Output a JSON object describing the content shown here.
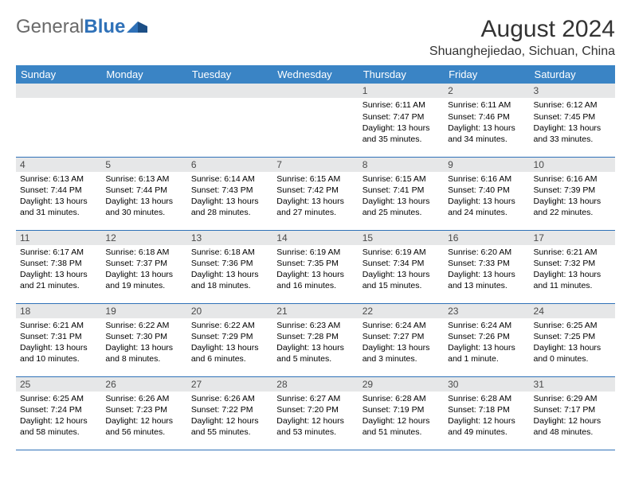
{
  "brand": {
    "part1": "General",
    "part2": "Blue"
  },
  "title": "August 2024",
  "location": "Shuanghejiedao, Sichuan, China",
  "colors": {
    "header_bg": "#3a84c5",
    "header_text": "#ffffff",
    "daynum_bg": "#e6e7e8",
    "border": "#2f71b8",
    "brand_blue": "#2f71b8",
    "brand_gray": "#6a6a6a",
    "background": "#ffffff"
  },
  "weekdays": [
    "Sunday",
    "Monday",
    "Tuesday",
    "Wednesday",
    "Thursday",
    "Friday",
    "Saturday"
  ],
  "weeks": [
    [
      null,
      null,
      null,
      null,
      {
        "d": "1",
        "sr": "6:11 AM",
        "ss": "7:47 PM",
        "dl": "13 hours and 35 minutes."
      },
      {
        "d": "2",
        "sr": "6:11 AM",
        "ss": "7:46 PM",
        "dl": "13 hours and 34 minutes."
      },
      {
        "d": "3",
        "sr": "6:12 AM",
        "ss": "7:45 PM",
        "dl": "13 hours and 33 minutes."
      }
    ],
    [
      {
        "d": "4",
        "sr": "6:13 AM",
        "ss": "7:44 PM",
        "dl": "13 hours and 31 minutes."
      },
      {
        "d": "5",
        "sr": "6:13 AM",
        "ss": "7:44 PM",
        "dl": "13 hours and 30 minutes."
      },
      {
        "d": "6",
        "sr": "6:14 AM",
        "ss": "7:43 PM",
        "dl": "13 hours and 28 minutes."
      },
      {
        "d": "7",
        "sr": "6:15 AM",
        "ss": "7:42 PM",
        "dl": "13 hours and 27 minutes."
      },
      {
        "d": "8",
        "sr": "6:15 AM",
        "ss": "7:41 PM",
        "dl": "13 hours and 25 minutes."
      },
      {
        "d": "9",
        "sr": "6:16 AM",
        "ss": "7:40 PM",
        "dl": "13 hours and 24 minutes."
      },
      {
        "d": "10",
        "sr": "6:16 AM",
        "ss": "7:39 PM",
        "dl": "13 hours and 22 minutes."
      }
    ],
    [
      {
        "d": "11",
        "sr": "6:17 AM",
        "ss": "7:38 PM",
        "dl": "13 hours and 21 minutes."
      },
      {
        "d": "12",
        "sr": "6:18 AM",
        "ss": "7:37 PM",
        "dl": "13 hours and 19 minutes."
      },
      {
        "d": "13",
        "sr": "6:18 AM",
        "ss": "7:36 PM",
        "dl": "13 hours and 18 minutes."
      },
      {
        "d": "14",
        "sr": "6:19 AM",
        "ss": "7:35 PM",
        "dl": "13 hours and 16 minutes."
      },
      {
        "d": "15",
        "sr": "6:19 AM",
        "ss": "7:34 PM",
        "dl": "13 hours and 15 minutes."
      },
      {
        "d": "16",
        "sr": "6:20 AM",
        "ss": "7:33 PM",
        "dl": "13 hours and 13 minutes."
      },
      {
        "d": "17",
        "sr": "6:21 AM",
        "ss": "7:32 PM",
        "dl": "13 hours and 11 minutes."
      }
    ],
    [
      {
        "d": "18",
        "sr": "6:21 AM",
        "ss": "7:31 PM",
        "dl": "13 hours and 10 minutes."
      },
      {
        "d": "19",
        "sr": "6:22 AM",
        "ss": "7:30 PM",
        "dl": "13 hours and 8 minutes."
      },
      {
        "d": "20",
        "sr": "6:22 AM",
        "ss": "7:29 PM",
        "dl": "13 hours and 6 minutes."
      },
      {
        "d": "21",
        "sr": "6:23 AM",
        "ss": "7:28 PM",
        "dl": "13 hours and 5 minutes."
      },
      {
        "d": "22",
        "sr": "6:24 AM",
        "ss": "7:27 PM",
        "dl": "13 hours and 3 minutes."
      },
      {
        "d": "23",
        "sr": "6:24 AM",
        "ss": "7:26 PM",
        "dl": "13 hours and 1 minute."
      },
      {
        "d": "24",
        "sr": "6:25 AM",
        "ss": "7:25 PM",
        "dl": "13 hours and 0 minutes."
      }
    ],
    [
      {
        "d": "25",
        "sr": "6:25 AM",
        "ss": "7:24 PM",
        "dl": "12 hours and 58 minutes."
      },
      {
        "d": "26",
        "sr": "6:26 AM",
        "ss": "7:23 PM",
        "dl": "12 hours and 56 minutes."
      },
      {
        "d": "27",
        "sr": "6:26 AM",
        "ss": "7:22 PM",
        "dl": "12 hours and 55 minutes."
      },
      {
        "d": "28",
        "sr": "6:27 AM",
        "ss": "7:20 PM",
        "dl": "12 hours and 53 minutes."
      },
      {
        "d": "29",
        "sr": "6:28 AM",
        "ss": "7:19 PM",
        "dl": "12 hours and 51 minutes."
      },
      {
        "d": "30",
        "sr": "6:28 AM",
        "ss": "7:18 PM",
        "dl": "12 hours and 49 minutes."
      },
      {
        "d": "31",
        "sr": "6:29 AM",
        "ss": "7:17 PM",
        "dl": "12 hours and 48 minutes."
      }
    ]
  ],
  "labels": {
    "sunrise": "Sunrise: ",
    "sunset": "Sunset: ",
    "daylight": "Daylight: "
  }
}
